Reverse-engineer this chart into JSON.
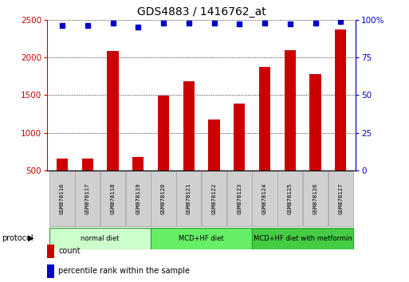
{
  "title": "GDS4883 / 1416762_at",
  "samples": [
    "GSM878116",
    "GSM878117",
    "GSM878118",
    "GSM878119",
    "GSM878120",
    "GSM878121",
    "GSM878122",
    "GSM878123",
    "GSM878124",
    "GSM878125",
    "GSM878126",
    "GSM878127"
  ],
  "counts": [
    660,
    665,
    2090,
    680,
    1490,
    1680,
    1180,
    1390,
    1870,
    2100,
    1780,
    2370
  ],
  "percentile_ranks": [
    96,
    96,
    98,
    95,
    98,
    98,
    98,
    97,
    98,
    97,
    98,
    99
  ],
  "count_color": "#cc0000",
  "percentile_color": "#0000cc",
  "ylim_left": [
    500,
    2500
  ],
  "ylim_right": [
    0,
    100
  ],
  "yticks_left": [
    500,
    1000,
    1500,
    2000,
    2500
  ],
  "yticks_right": [
    0,
    25,
    50,
    75,
    100
  ],
  "groups": [
    {
      "label": "normal diet",
      "start": 0,
      "end": 4,
      "color": "#ccffcc"
    },
    {
      "label": "MCD+HF diet",
      "start": 4,
      "end": 8,
      "color": "#66ee66"
    },
    {
      "label": "MCD+HF diet with metformin",
      "start": 8,
      "end": 12,
      "color": "#44cc44"
    }
  ],
  "protocol_label": "protocol",
  "legend_count_label": "count",
  "legend_percentile_label": "percentile rank within the sample",
  "bar_width": 0.45,
  "background_color": "#ffffff",
  "tick_label_color_left": "#cc0000",
  "tick_label_color_right": "#0000cc",
  "sample_box_color": "#d0d0d0",
  "sample_box_edge": "#aaaaaa",
  "group_edge_color": "#339933"
}
